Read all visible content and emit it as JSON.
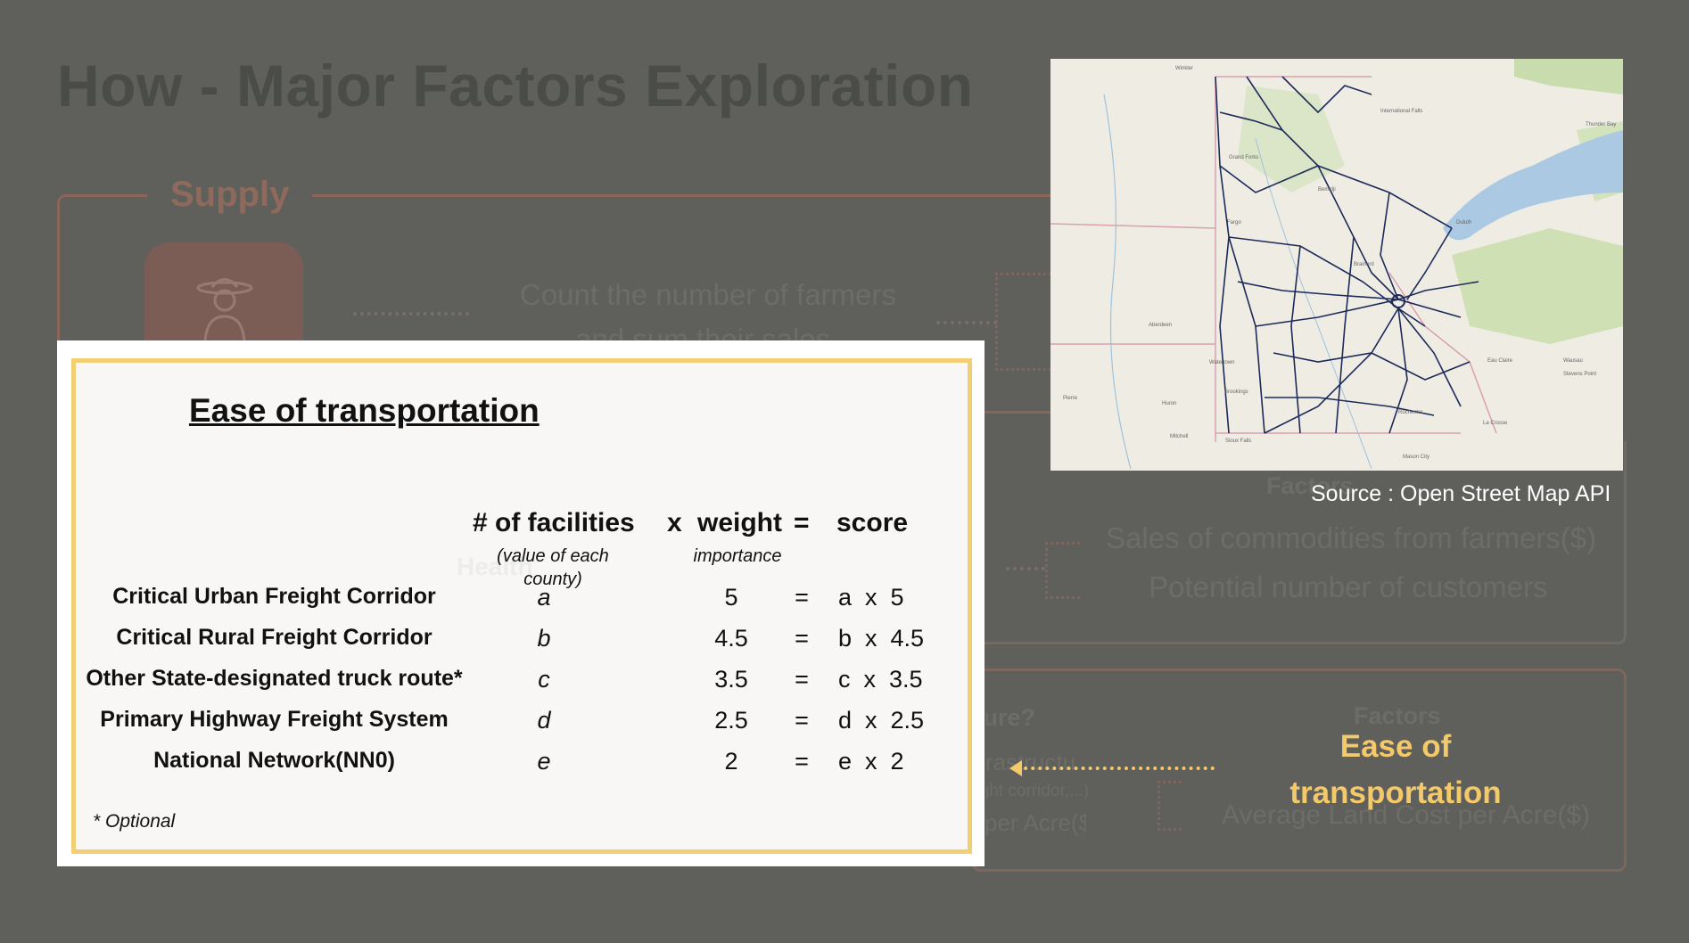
{
  "slide": {
    "title": "How - Major Factors Exploration",
    "supply_label": "Supply",
    "supply_text_1": "Count the number of farmers",
    "supply_text_2": "and sum their sales",
    "mid_factors_label": "Factors",
    "mid_items": [
      "Sales of commodities from farmers($)",
      "Potential number of customers"
    ],
    "low_question": "How to measure?",
    "low_item_1": "Infrastructure",
    "low_item_1_note": "(freight corridor,...)",
    "low_item_2": "Land cost per Acre($)",
    "low_factors_label": "Factors",
    "low_factor_item": "Average Land Cost per Acre($)",
    "ghost_heading": "Health"
  },
  "highlight": {
    "line1": "Ease of",
    "line2": "transportation",
    "color": "#f3c96a"
  },
  "map": {
    "source": "Source : Open Street Map API",
    "place_labels": [
      "Winkler",
      "International Falls",
      "Thunder Bay",
      "Grand Forks",
      "Bemidji",
      "Duluth",
      "Fargo",
      "Brainerd",
      "Aberdeen",
      "Watertown",
      "Huron",
      "Brookings",
      "Pierre",
      "Mitchell",
      "Sioux Falls",
      "Rochester",
      "Eau Claire",
      "La Crosse",
      "Wausau",
      "Stevens Point",
      "Mason City"
    ]
  },
  "card": {
    "title": "Ease of transportation",
    "headers": {
      "facilities": "# of facilities",
      "facilities_note_1": "(value of each",
      "facilities_note_2": "county)",
      "x": "x",
      "weight": "weight",
      "weight_note": "importance",
      "eq": "=",
      "score": "score"
    },
    "rows": [
      {
        "label": "Critical Urban Freight Corridor",
        "var": "a",
        "weight": "5",
        "eq": "=",
        "score": "a  x  5"
      },
      {
        "label": "Critical Rural Freight Corridor",
        "var": "b",
        "weight": "4.5",
        "eq": "=",
        "score": "b  x  4.5"
      },
      {
        "label": "Other State-designated truck route*",
        "var": "c",
        "weight": "3.5",
        "eq": "=",
        "score": "c  x  3.5"
      },
      {
        "label": "Primary Highway Freight System",
        "var": "d",
        "weight": "2.5",
        "eq": "=",
        "score": "d  x  2.5"
      },
      {
        "label": "National Network(NN0)",
        "var": "e",
        "weight": "2",
        "eq": "=",
        "score": "e  x  2"
      }
    ],
    "footnote": "* Optional"
  }
}
